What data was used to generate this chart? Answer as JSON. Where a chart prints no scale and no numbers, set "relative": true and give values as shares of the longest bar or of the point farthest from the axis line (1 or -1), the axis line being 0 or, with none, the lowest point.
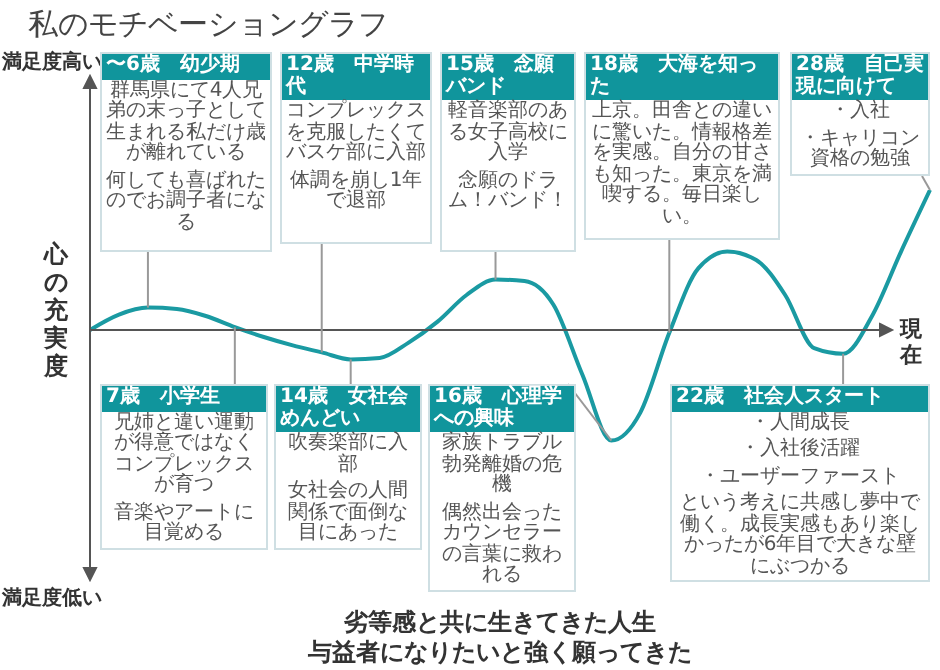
{
  "chart_data": {
    "type": "line",
    "title": "私のモチベーショングラフ",
    "subtitle": "劣等感と共に生きてきた人生",
    "ylabel": "心の充実度",
    "xlabel": "現在",
    "relative": true,
    "categories": [
      null,
      null,
      null,
      null,
      null,
      null,
      null,
      null,
      null,
      null,
      null,
      null,
      null,
      null,
      null,
      null,
      null,
      null,
      null,
      null,
      null,
      null,
      null,
      null,
      null,
      null,
      null,
      null,
      null,
      null
    ],
    "series": [
      {
        "color": "#1a9aa2",
        "values": [
          0,
          0.11,
          0.16,
          0.15,
          0.1,
          0.02,
          -0.05,
          -0.11,
          -0.16,
          -0.21,
          -0.2,
          -0.09,
          0.06,
          0.25,
          0.36,
          0.35,
          0.18,
          -0.32,
          -0.79,
          -0.59,
          -0.02,
          0.44,
          0.56,
          0.5,
          0.25,
          -0.13,
          -0.17,
          0.1,
          0.56,
          1
        ]
      }
    ],
    "marker": "none",
    "annotations": [
      "満足度高い",
      "満足度低い",
      "与益者になりたいと強く願ってきた",
      "〜6歳　幼少期",
      "群馬県にて4人兄弟の末っ子として生まれる私だけ歳が離れている",
      "何しても喜ばれたのでお調子者になる",
      "7歳　小学生",
      "兄姉と違い運動が得意ではなくコンプレックスが育つ",
      "音楽やアートに目覚める",
      "12歳　中学時代",
      "コンプレックスを克服したくてバスケ部に入部",
      "体調を崩し1年で退部",
      "14歳　女社会めんどい",
      "吹奏楽部に入部",
      "女社会の人間関係で面倒な目にあった",
      "15歳　念願バンド",
      "軽音楽部のある女子高校に入学",
      "念願のドラム！バンド！",
      "16歳　心理学への興味",
      "家族トラブル勃発離婚の危機",
      "偶然出会ったカウンセラーの言葉に救われる",
      "18歳　大海を知った",
      "上京。田舎との違いに驚いた。情報格差を実感。自分の甘さも知った。東京を満喫する。毎日楽しい。",
      "22歳　社会人スタート",
      "・人間成長",
      "・入社後活躍",
      "・ユーザーファースト",
      "という考えに共感し夢中で働く。成長実感もあり楽しかったが6年目で大きな壁にぶつかる",
      "28歳　自己実現に向けて",
      "・入社",
      "・キャリコン資格の勉強"
    ]
  }
}
